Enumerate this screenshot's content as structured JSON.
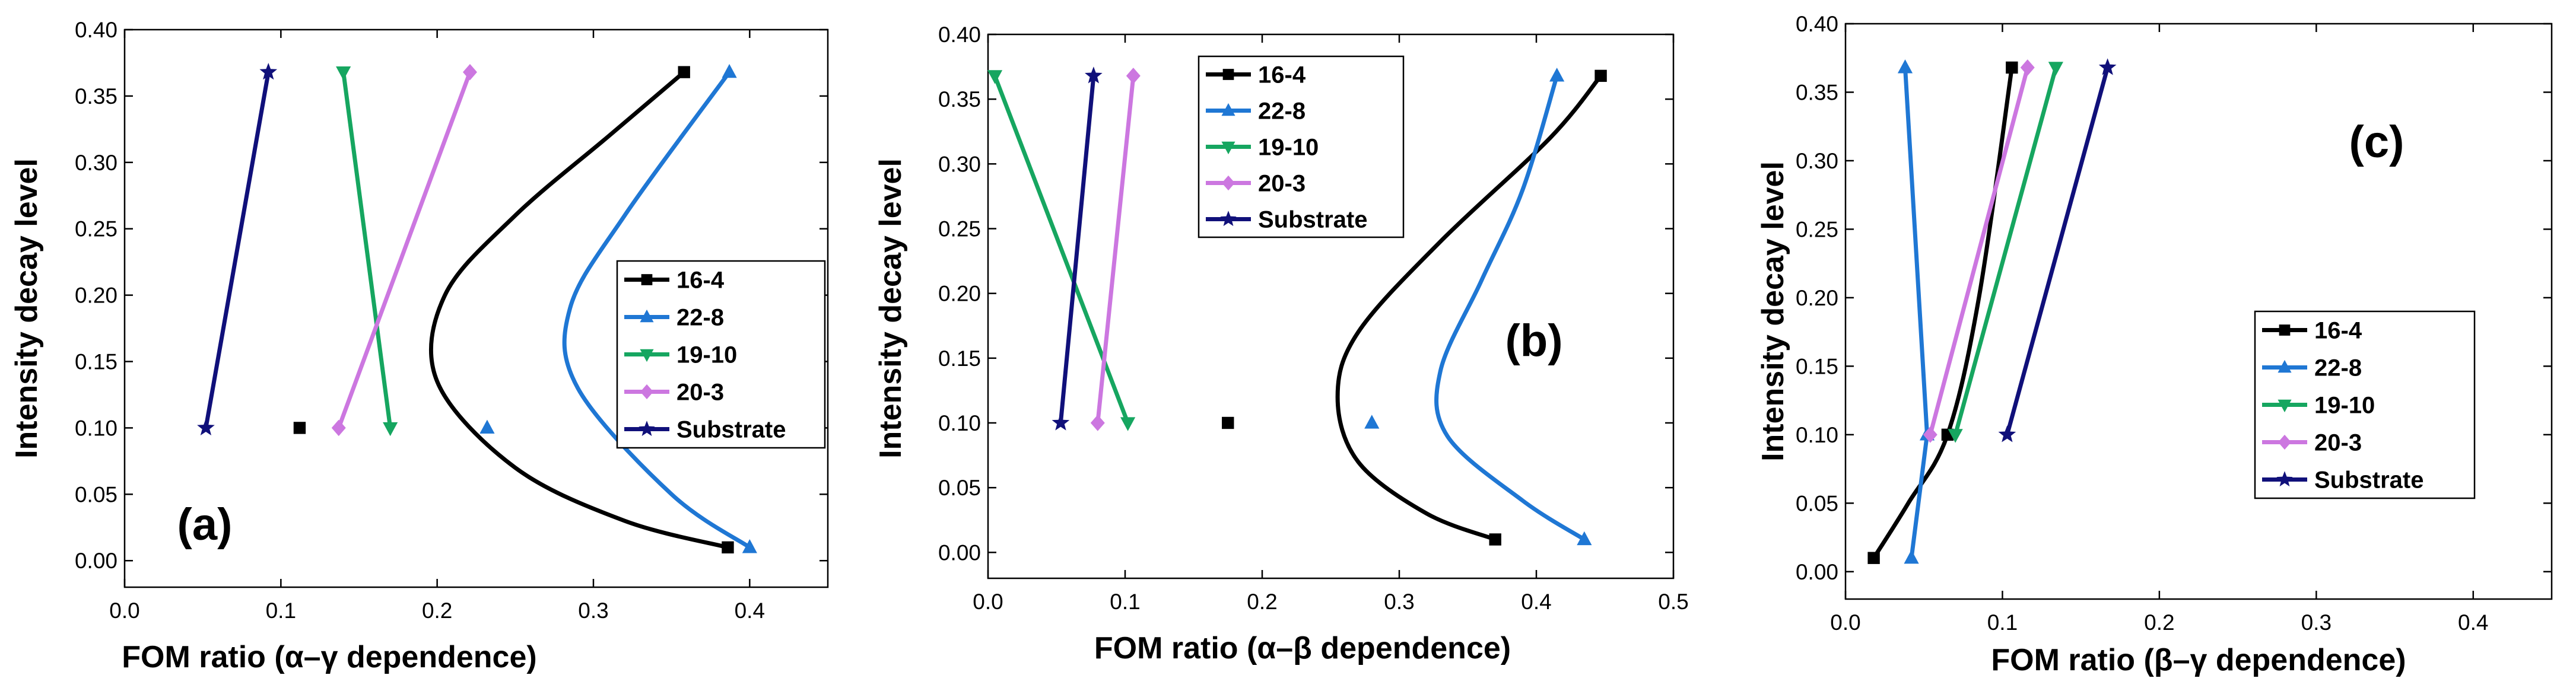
{
  "figure": {
    "series_colors": {
      "16-4": "#000000",
      "22-8": "#1f77d4",
      "19-10": "#16a660",
      "20-3": "#cc77e0",
      "Substrate": "#10107a"
    },
    "series_markers": {
      "16-4": "square",
      "22-8": "triangle-up",
      "19-10": "triangle-down",
      "20-3": "diamond",
      "Substrate": "star"
    }
  },
  "chart_data": [
    {
      "panel": "(a)",
      "type": "line",
      "xlabel": "FOM ratio (α–γ dependence)",
      "ylabel": "Intensity decay level",
      "xlim": [
        0.0,
        0.45
      ],
      "ylim": [
        -0.02,
        0.4
      ],
      "xticks": [
        "0.0",
        "0.1",
        "0.2",
        "0.3",
        "0.4"
      ],
      "yticks": [
        "0.00",
        "0.05",
        "0.10",
        "0.15",
        "0.20",
        "0.25",
        "0.30",
        "0.35",
        "0.40"
      ],
      "legend_position": "center-right",
      "series": [
        {
          "name": "16-4",
          "x": [
            0.386,
            0.112,
            0.358
          ],
          "y": [
            0.01,
            0.1,
            0.368
          ],
          "curve": [
            [
              0.386,
              0.01
            ],
            [
              0.32,
              0.03
            ],
            [
              0.25,
              0.07
            ],
            [
              0.2,
              0.135
            ],
            [
              0.205,
              0.2
            ],
            [
              0.25,
              0.26
            ],
            [
              0.31,
              0.32
            ],
            [
              0.358,
              0.368
            ]
          ]
        },
        {
          "name": "22-8",
          "x": [
            0.4,
            0.232,
            0.387
          ],
          "y": [
            0.01,
            0.1,
            0.368
          ],
          "curve": [
            [
              0.4,
              0.01
            ],
            [
              0.35,
              0.05
            ],
            [
              0.29,
              0.13
            ],
            [
              0.285,
              0.19
            ],
            [
              0.32,
              0.26
            ],
            [
              0.387,
              0.368
            ]
          ]
        },
        {
          "name": "19-10",
          "x": [
            0.17,
            0.14
          ],
          "y": [
            0.1,
            0.368
          ]
        },
        {
          "name": "20-3",
          "x": [
            0.137,
            0.221
          ],
          "y": [
            0.1,
            0.368
          ]
        },
        {
          "name": "Substrate",
          "x": [
            0.052,
            0.092
          ],
          "y": [
            0.1,
            0.368
          ]
        }
      ]
    },
    {
      "panel": "(b)",
      "type": "line",
      "xlabel": "FOM ratio (α–β dependence)",
      "ylabel": "Intensity decay level",
      "xlim": [
        0.0,
        0.5
      ],
      "ylim": [
        -0.02,
        0.4
      ],
      "xticks": [
        "0.0",
        "0.1",
        "0.2",
        "0.3",
        "0.4",
        "0.5"
      ],
      "yticks": [
        "0.00",
        "0.05",
        "0.10",
        "0.15",
        "0.20",
        "0.25",
        "0.30",
        "0.35",
        "0.40"
      ],
      "legend_position": "top-center",
      "series": [
        {
          "name": "16-4",
          "x": [
            0.37,
            0.175,
            0.447
          ],
          "y": [
            0.01,
            0.1,
            0.368
          ],
          "curve": [
            [
              0.37,
              0.01
            ],
            [
              0.32,
              0.03
            ],
            [
              0.27,
              0.07
            ],
            [
              0.255,
              0.12
            ],
            [
              0.27,
              0.17
            ],
            [
              0.33,
              0.24
            ],
            [
              0.41,
              0.32
            ],
            [
              0.447,
              0.368
            ]
          ]
        },
        {
          "name": "22-8",
          "x": [
            0.435,
            0.28,
            0.415
          ],
          "y": [
            0.01,
            0.1,
            0.368
          ],
          "curve": [
            [
              0.435,
              0.01
            ],
            [
              0.39,
              0.04
            ],
            [
              0.335,
              0.09
            ],
            [
              0.33,
              0.14
            ],
            [
              0.36,
              0.21
            ],
            [
              0.39,
              0.28
            ],
            [
              0.415,
              0.368
            ]
          ]
        },
        {
          "name": "19-10",
          "x": [
            0.102,
            0.005
          ],
          "y": [
            0.1,
            0.368
          ]
        },
        {
          "name": "20-3",
          "x": [
            0.08,
            0.106
          ],
          "y": [
            0.1,
            0.368
          ]
        },
        {
          "name": "Substrate",
          "x": [
            0.053,
            0.077
          ],
          "y": [
            0.1,
            0.368
          ]
        }
      ]
    },
    {
      "panel": "(c)",
      "type": "line",
      "xlabel": "FOM ratio (β–γ dependence)",
      "ylabel": "Intensity decay level",
      "xlim": [
        0.0,
        0.45
      ],
      "ylim": [
        -0.02,
        0.4
      ],
      "xticks": [
        "0.0",
        "0.1",
        "0.2",
        "0.3",
        "0.4"
      ],
      "yticks": [
        "0.00",
        "0.05",
        "0.10",
        "0.15",
        "0.20",
        "0.25",
        "0.30",
        "0.35",
        "0.40"
      ],
      "legend_position": "center-right",
      "series": [
        {
          "name": "16-4",
          "x": [
            0.018,
            0.065,
            0.106
          ],
          "y": [
            0.01,
            0.1,
            0.368
          ],
          "curve": [
            [
              0.018,
              0.01
            ],
            [
              0.04,
              0.05
            ],
            [
              0.065,
              0.1
            ],
            [
              0.085,
              0.2
            ],
            [
              0.106,
              0.368
            ]
          ]
        },
        {
          "name": "22-8",
          "x": [
            0.042,
            0.052,
            0.038
          ],
          "y": [
            0.01,
            0.1,
            0.368
          ]
        },
        {
          "name": "19-10",
          "x": [
            0.07,
            0.134
          ],
          "y": [
            0.1,
            0.368
          ]
        },
        {
          "name": "20-3",
          "x": [
            0.054,
            0.116
          ],
          "y": [
            0.1,
            0.368
          ]
        },
        {
          "name": "Substrate",
          "x": [
            0.103,
            0.167
          ],
          "y": [
            0.1,
            0.368
          ]
        }
      ]
    }
  ]
}
